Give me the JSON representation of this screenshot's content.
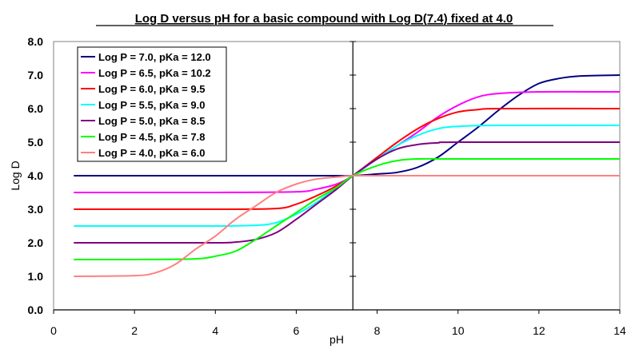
{
  "chart_data": {
    "type": "line",
    "title": "Log D versus pH for a basic compound with Log D(7.4) fixed at 4.0",
    "xlabel": "pH",
    "ylabel": "Log D",
    "xlim": [
      0,
      14
    ],
    "ylim": [
      0,
      8
    ],
    "xticks": [
      "0",
      "2",
      "4",
      "6",
      "8",
      "10",
      "12",
      "14"
    ],
    "yticks": [
      "0.0",
      "1.0",
      "2.0",
      "3.0",
      "4.0",
      "5.0",
      "6.0",
      "7.0",
      "8.0"
    ],
    "y_axis_crosses_at_x": 7.4,
    "grid": false,
    "legend_position": "top-left",
    "series": [
      {
        "name": "Log P = 7.0, pKa = 12.0",
        "color": "#000080",
        "x": [
          0.5,
          2,
          4,
          6,
          7,
          7.4,
          8,
          8.5,
          9,
          9.5,
          10,
          10.5,
          11,
          11.5,
          12,
          12.5,
          13,
          14
        ],
        "y": [
          4,
          4,
          4,
          4,
          4,
          4,
          4.05,
          4.1,
          4.25,
          4.55,
          5.0,
          5.45,
          5.95,
          6.4,
          6.75,
          6.9,
          6.97,
          7.0
        ]
      },
      {
        "name": "Log P = 6.5, pKa = 10.2",
        "color": "#FF00FF",
        "x": [
          0.5,
          2,
          4,
          6,
          6.5,
          7,
          7.4,
          8,
          8.5,
          9,
          9.5,
          10,
          10.5,
          11,
          12,
          14
        ],
        "y": [
          3.5,
          3.5,
          3.5,
          3.52,
          3.6,
          3.75,
          4.0,
          4.5,
          4.9,
          5.3,
          5.75,
          6.1,
          6.35,
          6.45,
          6.5,
          6.5
        ]
      },
      {
        "name": "Log P = 6.0, pKa = 9.5",
        "color": "#FF0000",
        "x": [
          0.5,
          2,
          4,
          5.5,
          6,
          6.5,
          7,
          7.4,
          8,
          8.5,
          9,
          9.5,
          10,
          10.5,
          11,
          14
        ],
        "y": [
          3,
          3,
          3,
          3.02,
          3.15,
          3.4,
          3.7,
          4.0,
          4.55,
          5.0,
          5.4,
          5.7,
          5.9,
          5.97,
          6.0,
          6.0
        ]
      },
      {
        "name": "Log P = 5.5, pKa = 9.0",
        "color": "#00FFFF",
        "x": [
          0.5,
          2,
          4,
          5,
          5.5,
          6,
          6.5,
          7,
          7.4,
          8,
          8.5,
          9,
          9.5,
          10,
          11,
          14
        ],
        "y": [
          2.5,
          2.5,
          2.5,
          2.52,
          2.6,
          2.85,
          3.2,
          3.65,
          4.0,
          4.5,
          4.9,
          5.2,
          5.4,
          5.47,
          5.5,
          5.5
        ]
      },
      {
        "name": "Log P = 5.0, pKa = 8.5",
        "color": "#800080",
        "x": [
          0.5,
          2,
          4,
          4.5,
          5,
          5.5,
          6,
          6.5,
          7,
          7.4,
          8,
          8.5,
          9,
          9.5,
          10,
          14
        ],
        "y": [
          2,
          2,
          2,
          2.02,
          2.1,
          2.3,
          2.7,
          3.15,
          3.6,
          4.0,
          4.5,
          4.8,
          4.93,
          4.98,
          5.0,
          5.0
        ]
      },
      {
        "name": "Log P = 4.5, pKa = 7.8",
        "color": "#00FF00",
        "x": [
          0.5,
          2,
          3.5,
          4,
          4.5,
          5,
          5.5,
          6,
          6.5,
          7,
          7.4,
          8,
          8.5,
          9,
          10,
          14
        ],
        "y": [
          1.5,
          1.5,
          1.52,
          1.6,
          1.75,
          2.1,
          2.5,
          2.9,
          3.3,
          3.65,
          4.0,
          4.3,
          4.45,
          4.5,
          4.5,
          4.5
        ]
      },
      {
        "name": "Log P = 4.0, pKa = 6.0",
        "color": "#FF8080",
        "x": [
          0.5,
          2,
          2.5,
          3,
          3.5,
          4,
          4.5,
          5,
          5.5,
          6,
          6.5,
          7,
          7.4,
          8,
          14
        ],
        "y": [
          1.0,
          1.02,
          1.1,
          1.35,
          1.8,
          2.2,
          2.7,
          3.1,
          3.5,
          3.75,
          3.9,
          3.96,
          4.0,
          4.0,
          4.0
        ]
      }
    ]
  }
}
